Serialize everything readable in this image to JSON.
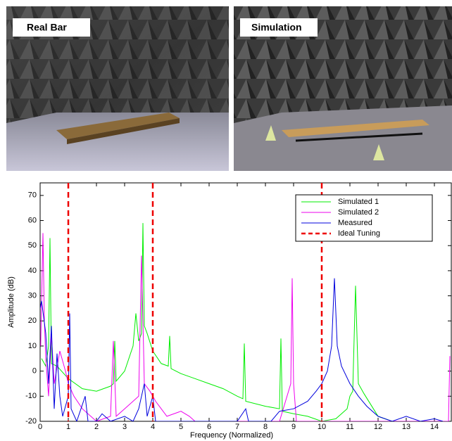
{
  "images": [
    {
      "label": "Real Bar"
    },
    {
      "label": "Simulation"
    }
  ],
  "chart_data": {
    "type": "line",
    "xlabel": "Frequency (Normalized)",
    "ylabel": "Amplitude (dB)",
    "xlim": [
      0,
      14.6
    ],
    "ylim": [
      -20,
      75
    ],
    "xticks": [
      0,
      1,
      2,
      3,
      4,
      5,
      6,
      7,
      8,
      9,
      10,
      11,
      12,
      13,
      14
    ],
    "yticks": [
      -20,
      -10,
      0,
      10,
      20,
      30,
      40,
      50,
      60,
      70
    ],
    "legend": "upper right",
    "series": [
      {
        "name": "Simulated 1",
        "color": "#00ee00",
        "x": [
          0.05,
          0.2,
          0.3,
          0.35,
          0.4,
          0.6,
          1,
          1.5,
          2,
          2.5,
          2.6,
          2.65,
          2.7,
          3,
          3.3,
          3.4,
          3.5,
          3.6,
          3.65,
          3.7,
          3.8,
          4,
          4.3,
          4.55,
          4.6,
          4.65,
          5,
          5.5,
          6,
          6.5,
          7,
          7.2,
          7.25,
          7.3,
          8,
          8.5,
          8.55,
          8.6,
          9,
          9.5,
          10,
          10.5,
          10.9,
          11,
          11.1,
          11.2,
          11.3,
          11.5,
          12,
          12.5
        ],
        "values": [
          5,
          2,
          10,
          53,
          3,
          2,
          -3,
          -7,
          -8,
          -6,
          -5,
          12,
          -4,
          0,
          10,
          23,
          12,
          15,
          59,
          18,
          15,
          8,
          3,
          2,
          14,
          1,
          -1,
          -3,
          -5,
          -7,
          -10,
          -11,
          11,
          -12,
          -14,
          -15,
          13,
          -16,
          -17,
          -18,
          -20,
          -19,
          -15,
          -10,
          -8,
          34,
          -5,
          -9,
          -18,
          -20
        ]
      },
      {
        "name": "Simulated 2",
        "color": "#ee00ee",
        "x": [
          0.02,
          0.1,
          0.15,
          0.2,
          0.3,
          0.4,
          0.5,
          0.7,
          0.9,
          1,
          1.2,
          1.5,
          1.8,
          2,
          2.5,
          2.6,
          2.7,
          3,
          3.3,
          3.5,
          3.6,
          3.7,
          3.9,
          4.1,
          4.3,
          4.5,
          5,
          5.3,
          5.5,
          8.5,
          8.9,
          8.95,
          9,
          9.1,
          14.5,
          14.55
        ],
        "values": [
          10,
          55,
          20,
          5,
          -10,
          15,
          -5,
          8,
          0,
          -5,
          -10,
          -15,
          -18,
          -20,
          -18,
          12,
          -18,
          -15,
          -12,
          -10,
          46,
          -5,
          -8,
          -12,
          -15,
          -18,
          -16,
          -18,
          -20,
          -20,
          -5,
          37,
          -5,
          -20,
          -20,
          6
        ]
      },
      {
        "name": "Measured",
        "color": "#0000dd",
        "x": [
          0,
          0.05,
          0.2,
          0.3,
          0.4,
          0.5,
          0.6,
          0.7,
          0.8,
          1,
          1.05,
          1.1,
          1.3,
          1.6,
          1.7,
          2,
          2.2,
          2.5,
          3,
          3.3,
          3.5,
          3.7,
          3.8,
          4,
          4.1,
          5,
          6,
          7,
          7.3,
          7.4,
          8.2,
          8.5,
          9,
          9.5,
          9.8,
          10,
          10.2,
          10.35,
          10.45,
          10.55,
          10.7,
          11,
          11.3,
          11.6,
          12,
          12.5,
          13,
          13.5,
          14,
          14.3
        ],
        "values": [
          25,
          28,
          15,
          -5,
          18,
          -15,
          7,
          -10,
          -18,
          -10,
          23,
          -15,
          -20,
          -10,
          -20,
          -20,
          -17,
          -20,
          -18,
          -20,
          -15,
          -5,
          -18,
          -10,
          -20,
          -20,
          -20,
          -20,
          -15,
          -20,
          -20,
          -16,
          -15,
          -12,
          -8,
          -5,
          0,
          10,
          37,
          10,
          2,
          -5,
          -10,
          -14,
          -18,
          -20,
          -18,
          -20,
          -19,
          -20
        ]
      }
    ],
    "vlines": {
      "name": "Ideal Tuning",
      "color": "#ee0000",
      "x": [
        1,
        4,
        10
      ]
    }
  }
}
